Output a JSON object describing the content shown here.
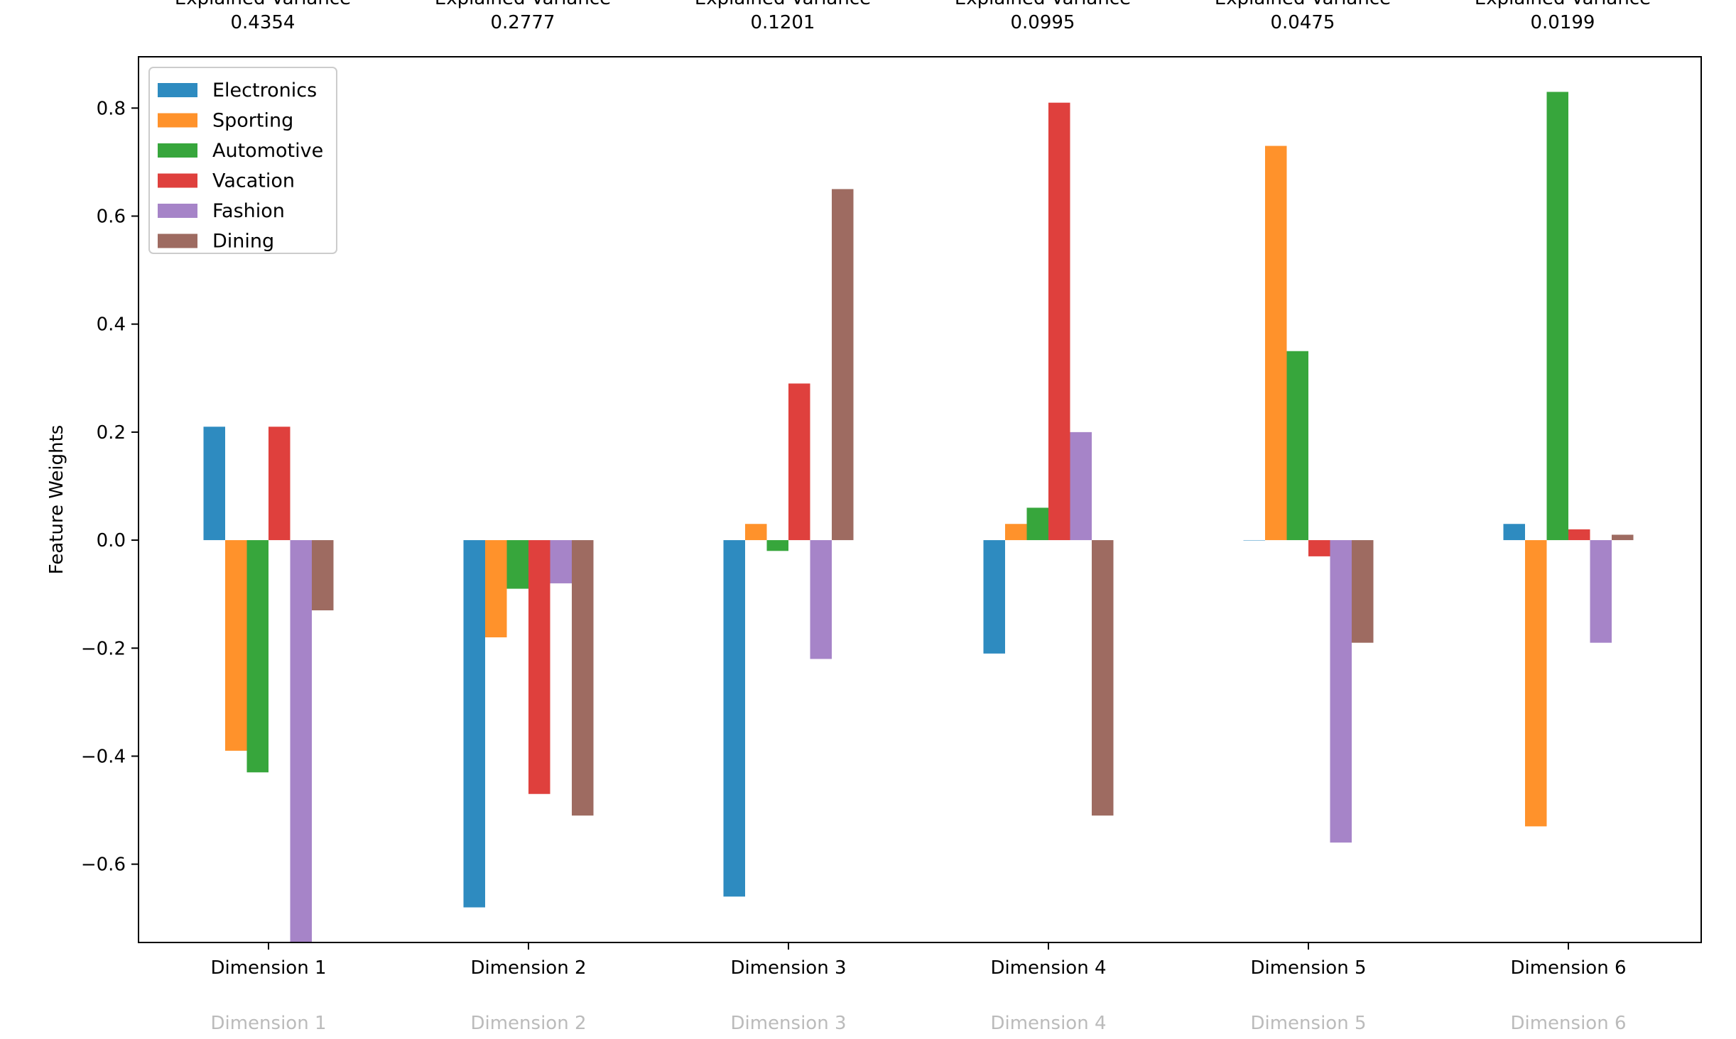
{
  "chart_data": {
    "type": "bar",
    "ylabel": "Feature Weights",
    "ylim": [
      -0.745,
      0.895
    ],
    "yticks": [
      -0.6,
      -0.4,
      -0.2,
      0.0,
      0.2,
      0.4,
      0.6,
      0.8
    ],
    "ytick_labels": [
      "−0.6",
      "−0.4",
      "−0.2",
      "0.0",
      "0.2",
      "0.4",
      "0.6",
      "0.8"
    ],
    "categories": [
      "Dimension 1",
      "Dimension 2",
      "Dimension 3",
      "Dimension 4",
      "Dimension 5",
      "Dimension 6"
    ],
    "explained_variance_title": "Explained Variance",
    "explained_variance": [
      "0.4354",
      "0.2777",
      "0.1201",
      "0.0995",
      "0.0475",
      "0.0199"
    ],
    "legend_position": "upper-left",
    "grid": false,
    "series": [
      {
        "name": "Electronics",
        "color": "#2e8bc0",
        "values": [
          0.21,
          -0.68,
          -0.66,
          -0.21,
          0.0,
          0.03
        ]
      },
      {
        "name": "Sporting",
        "color": "#ff922b",
        "values": [
          -0.39,
          -0.18,
          0.03,
          0.03,
          0.73,
          -0.53
        ]
      },
      {
        "name": "Automotive",
        "color": "#37a63c",
        "values": [
          -0.43,
          -0.09,
          -0.02,
          0.06,
          0.35,
          0.83
        ]
      },
      {
        "name": "Vacation",
        "color": "#df403d",
        "values": [
          0.21,
          -0.47,
          0.29,
          0.81,
          -0.03,
          0.02
        ]
      },
      {
        "name": "Fashion",
        "color": "#a684c8",
        "values": [
          -0.76,
          -0.08,
          -0.22,
          0.2,
          -0.56,
          -0.19
        ]
      },
      {
        "name": "Dining",
        "color": "#9e6b61",
        "values": [
          -0.13,
          -0.51,
          0.65,
          -0.51,
          -0.19,
          0.01
        ]
      }
    ]
  }
}
